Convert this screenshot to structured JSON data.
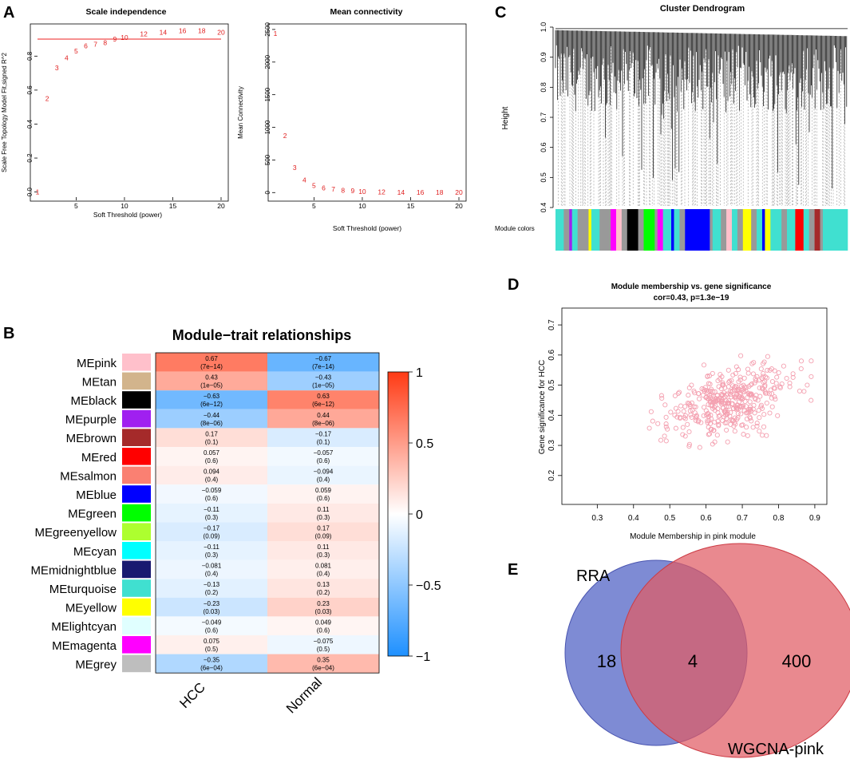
{
  "panels": {
    "a": "A",
    "b": "B",
    "c": "C",
    "d": "D",
    "e": "E"
  },
  "chart_data": [
    {
      "id": "scale-independence",
      "type": "scatter",
      "title": "Scale independence",
      "xlabel": "Soft Threshold (power)",
      "ylabel": "Scale Free Topology Model Fit,signed R^2",
      "xlim": [
        1,
        20
      ],
      "ylim": [
        -0.03,
        0.98
      ],
      "xticks": [
        5,
        10,
        15,
        20
      ],
      "yticks": [
        0.0,
        0.2,
        0.4,
        0.6,
        0.8
      ],
      "cutoff": 0.9,
      "points": [
        {
          "x": 1,
          "y": 0.0,
          "label": "1"
        },
        {
          "x": 2,
          "y": 0.55,
          "label": "2"
        },
        {
          "x": 3,
          "y": 0.73,
          "label": "3"
        },
        {
          "x": 4,
          "y": 0.79,
          "label": "4"
        },
        {
          "x": 5,
          "y": 0.83,
          "label": "5"
        },
        {
          "x": 6,
          "y": 0.86,
          "label": "6"
        },
        {
          "x": 7,
          "y": 0.87,
          "label": "7"
        },
        {
          "x": 8,
          "y": 0.88,
          "label": "8"
        },
        {
          "x": 9,
          "y": 0.9,
          "label": "9"
        },
        {
          "x": 10,
          "y": 0.91,
          "label": "10"
        },
        {
          "x": 12,
          "y": 0.93,
          "label": "12"
        },
        {
          "x": 14,
          "y": 0.94,
          "label": "14"
        },
        {
          "x": 16,
          "y": 0.95,
          "label": "16"
        },
        {
          "x": 18,
          "y": 0.95,
          "label": "18"
        },
        {
          "x": 20,
          "y": 0.94,
          "label": "20"
        }
      ]
    },
    {
      "id": "mean-connectivity",
      "type": "scatter",
      "title": "Mean connectivity",
      "xlabel": "Soft Threshold (power)",
      "ylabel": "Mean Connectivity",
      "xlim": [
        1,
        20
      ],
      "ylim": [
        -70,
        2560
      ],
      "xticks": [
        5,
        10,
        15,
        20
      ],
      "yticks": [
        0,
        500,
        1000,
        1500,
        2000,
        2500
      ],
      "points": [
        {
          "x": 1,
          "y": 2440,
          "label": "1"
        },
        {
          "x": 2,
          "y": 870,
          "label": "2"
        },
        {
          "x": 3,
          "y": 380,
          "label": "3"
        },
        {
          "x": 4,
          "y": 190,
          "label": "4"
        },
        {
          "x": 5,
          "y": 110,
          "label": "5"
        },
        {
          "x": 6,
          "y": 70,
          "label": "6"
        },
        {
          "x": 7,
          "y": 50,
          "label": "7"
        },
        {
          "x": 8,
          "y": 35,
          "label": "8"
        },
        {
          "x": 9,
          "y": 25,
          "label": "9"
        },
        {
          "x": 10,
          "y": 18,
          "label": "10"
        },
        {
          "x": 12,
          "y": 10,
          "label": "12"
        },
        {
          "x": 14,
          "y": 6,
          "label": "14"
        },
        {
          "x": 16,
          "y": 4,
          "label": "16"
        },
        {
          "x": 18,
          "y": 3,
          "label": "18"
        },
        {
          "x": 20,
          "y": 2,
          "label": "20"
        }
      ]
    },
    {
      "id": "cluster-dendrogram",
      "type": "dendrogram",
      "title": "Cluster Dendrogram",
      "ylabel": "Height",
      "ylim": [
        0.4,
        1.0
      ],
      "yticks": [
        "0.4",
        "0.5",
        "0.6",
        "0.7",
        "0.8",
        "0.9",
        "1.0"
      ],
      "colorbar_label": "Module colors",
      "module_strip": [
        {
          "color": "#40e0d0",
          "w": 3
        },
        {
          "color": "#999999",
          "w": 2
        },
        {
          "color": "#a020f0",
          "w": 1
        },
        {
          "color": "#40e0d0",
          "w": 2
        },
        {
          "color": "#999999",
          "w": 4
        },
        {
          "color": "#ffff00",
          "w": 1
        },
        {
          "color": "#40e0d0",
          "w": 3
        },
        {
          "color": "#999999",
          "w": 4
        },
        {
          "color": "#ff00ff",
          "w": 2
        },
        {
          "color": "#ffc0cb",
          "w": 2
        },
        {
          "color": "#999999",
          "w": 2
        },
        {
          "color": "#000000",
          "w": 4
        },
        {
          "color": "#999999",
          "w": 2
        },
        {
          "color": "#00ff00",
          "w": 4
        },
        {
          "color": "#999999",
          "w": 1
        },
        {
          "color": "#ff00ff",
          "w": 2
        },
        {
          "color": "#40e0d0",
          "w": 3
        },
        {
          "color": "#0000ff",
          "w": 1
        },
        {
          "color": "#40e0d0",
          "w": 2
        },
        {
          "color": "#999999",
          "w": 2
        },
        {
          "color": "#0000ff",
          "w": 9
        },
        {
          "color": "#999999",
          "w": 1
        },
        {
          "color": "#40e0d0",
          "w": 3
        },
        {
          "color": "#999999",
          "w": 2
        },
        {
          "color": "#ffc0cb",
          "w": 2
        },
        {
          "color": "#40e0d0",
          "w": 2
        },
        {
          "color": "#999999",
          "w": 2
        },
        {
          "color": "#ffff00",
          "w": 3
        },
        {
          "color": "#999999",
          "w": 2
        },
        {
          "color": "#40e0d0",
          "w": 2
        },
        {
          "color": "#0000ff",
          "w": 1
        },
        {
          "color": "#ffff00",
          "w": 2
        },
        {
          "color": "#40e0d0",
          "w": 4
        },
        {
          "color": "#999999",
          "w": 2
        },
        {
          "color": "#40e0d0",
          "w": 3
        },
        {
          "color": "#ff0000",
          "w": 3
        },
        {
          "color": "#40e0d0",
          "w": 2
        },
        {
          "color": "#999999",
          "w": 2
        },
        {
          "color": "#a52a2a",
          "w": 2
        },
        {
          "color": "#999999",
          "w": 1
        },
        {
          "color": "#40e0d0",
          "w": 9
        }
      ]
    },
    {
      "id": "module-trait-relationships",
      "type": "heatmap",
      "title": "Module−trait relationships",
      "columns": [
        "HCC",
        "Normal"
      ],
      "rows": [
        {
          "label": "MEpink",
          "color": "#ffc0cb",
          "cells": [
            {
              "v": 0.67,
              "text": "0.67",
              "p": "(7e−14)"
            },
            {
              "v": -0.67,
              "text": "−0.67",
              "p": "(7e−14)"
            }
          ]
        },
        {
          "label": "MEtan",
          "color": "#d2b48c",
          "cells": [
            {
              "v": 0.43,
              "text": "0.43",
              "p": "(1e−05)"
            },
            {
              "v": -0.43,
              "text": "−0.43",
              "p": "(1e−05)"
            }
          ]
        },
        {
          "label": "MEblack",
          "color": "#000000",
          "cells": [
            {
              "v": -0.63,
              "text": "−0.63",
              "p": "(6e−12)"
            },
            {
              "v": 0.63,
              "text": "0.63",
              "p": "(6e−12)"
            }
          ]
        },
        {
          "label": "MEpurple",
          "color": "#a020f0",
          "cells": [
            {
              "v": -0.44,
              "text": "−0.44",
              "p": "(8e−06)"
            },
            {
              "v": 0.44,
              "text": "0.44",
              "p": "(8e−06)"
            }
          ]
        },
        {
          "label": "MEbrown",
          "color": "#a52a2a",
          "cells": [
            {
              "v": 0.17,
              "text": "0.17",
              "p": "(0.1)"
            },
            {
              "v": -0.17,
              "text": "−0.17",
              "p": "(0.1)"
            }
          ]
        },
        {
          "label": "MEred",
          "color": "#ff0000",
          "cells": [
            {
              "v": 0.057,
              "text": "0.057",
              "p": "(0.6)"
            },
            {
              "v": -0.057,
              "text": "−0.057",
              "p": "(0.6)"
            }
          ]
        },
        {
          "label": "MEsalmon",
          "color": "#fa8072",
          "cells": [
            {
              "v": 0.094,
              "text": "0.094",
              "p": "(0.4)"
            },
            {
              "v": -0.094,
              "text": "−0.094",
              "p": "(0.4)"
            }
          ]
        },
        {
          "label": "MEblue",
          "color": "#0000ff",
          "cells": [
            {
              "v": -0.059,
              "text": "−0.059",
              "p": "(0.6)"
            },
            {
              "v": 0.059,
              "text": "0.059",
              "p": "(0.6)"
            }
          ]
        },
        {
          "label": "MEgreen",
          "color": "#00ff00",
          "cells": [
            {
              "v": -0.11,
              "text": "−0.11",
              "p": "(0.3)"
            },
            {
              "v": 0.11,
              "text": "0.11",
              "p": "(0.3)"
            }
          ]
        },
        {
          "label": "MEgreenyellow",
          "color": "#adff2f",
          "cells": [
            {
              "v": -0.17,
              "text": "−0.17",
              "p": "(0.09)"
            },
            {
              "v": 0.17,
              "text": "0.17",
              "p": "(0.09)"
            }
          ]
        },
        {
          "label": "MEcyan",
          "color": "#00ffff",
          "cells": [
            {
              "v": -0.11,
              "text": "−0.11",
              "p": "(0.3)"
            },
            {
              "v": 0.11,
              "text": "0.11",
              "p": "(0.3)"
            }
          ]
        },
        {
          "label": "MEmidnightblue",
          "color": "#191970",
          "cells": [
            {
              "v": -0.081,
              "text": "−0.081",
              "p": "(0.4)"
            },
            {
              "v": 0.081,
              "text": "0.081",
              "p": "(0.4)"
            }
          ]
        },
        {
          "label": "MEturquoise",
          "color": "#40e0d0",
          "cells": [
            {
              "v": -0.13,
              "text": "−0.13",
              "p": "(0.2)"
            },
            {
              "v": 0.13,
              "text": "0.13",
              "p": "(0.2)"
            }
          ]
        },
        {
          "label": "MEyellow",
          "color": "#ffff00",
          "cells": [
            {
              "v": -0.23,
              "text": "−0.23",
              "p": "(0.03)"
            },
            {
              "v": 0.23,
              "text": "0.23",
              "p": "(0.03)"
            }
          ]
        },
        {
          "label": "MElightcyan",
          "color": "#e0ffff",
          "cells": [
            {
              "v": -0.049,
              "text": "−0.049",
              "p": "(0.6)"
            },
            {
              "v": 0.049,
              "text": "0.049",
              "p": "(0.6)"
            }
          ]
        },
        {
          "label": "MEmagenta",
          "color": "#ff00ff",
          "cells": [
            {
              "v": 0.075,
              "text": "0.075",
              "p": "(0.5)"
            },
            {
              "v": -0.075,
              "text": "−0.075",
              "p": "(0.5)"
            }
          ]
        },
        {
          "label": "MEgrey",
          "color": "#bebebe",
          "cells": [
            {
              "v": -0.35,
              "text": "−0.35",
              "p": "(6e−04)"
            },
            {
              "v": 0.35,
              "text": "0.35",
              "p": "(6e−04)"
            }
          ]
        }
      ],
      "colorbar": {
        "range": [
          -1,
          1
        ],
        "ticks": [
          "1",
          "0.5",
          "0",
          "−0.5",
          "−1"
        ],
        "low_color": "#1e90ff",
        "mid_color": "#ffffff",
        "high_color": "#ff3a14"
      }
    },
    {
      "id": "mm-vs-gs",
      "type": "scatter",
      "title": "Module membership vs. gene significance",
      "subtitle": "cor=0.43, p=1.3e−19",
      "xlabel": "Module Membership in pink module",
      "ylabel": "Gene significance for HCC",
      "xlim": [
        0.22,
        0.92
      ],
      "ylim": [
        0.12,
        0.74
      ],
      "xticks": [
        "0.3",
        "0.4",
        "0.5",
        "0.6",
        "0.7",
        "0.8",
        "0.9"
      ],
      "yticks": [
        "0.2",
        "0.3",
        "0.4",
        "0.5",
        "0.6",
        "0.7"
      ],
      "point_color": "#f4a0b0",
      "n_points": 404
    },
    {
      "id": "venn",
      "type": "venn",
      "sets": [
        {
          "name": "RRA",
          "only": "18",
          "color": "#5a6ac8"
        },
        {
          "name": "WGCNA-pink",
          "only": "400",
          "color": "#e05c64"
        }
      ],
      "intersection": "4"
    }
  ]
}
